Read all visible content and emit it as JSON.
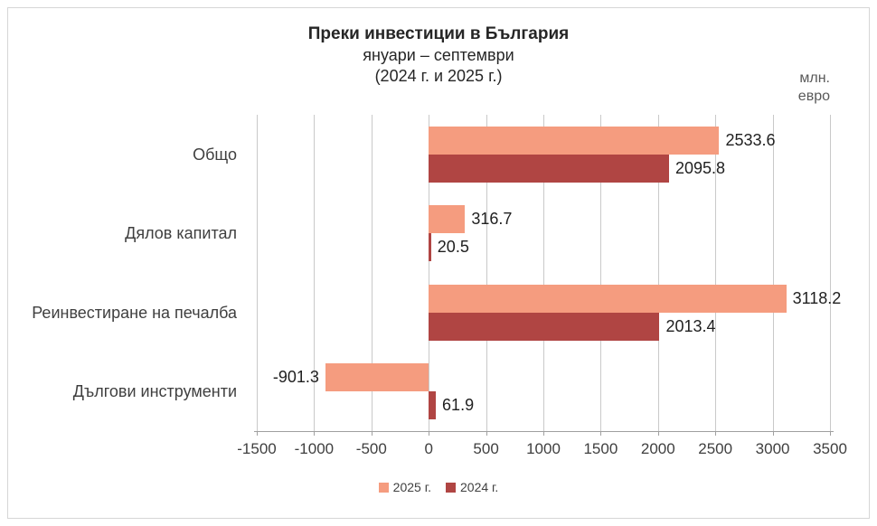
{
  "title": {
    "line1": "Преки инвестиции в България",
    "line2": "януари – септември",
    "line3": "(2024 г. и 2025 г.)"
  },
  "unit": {
    "line1": "млн.",
    "line2": "евро"
  },
  "chart_data": {
    "type": "bar",
    "orientation": "horizontal",
    "title": "Преки инвестиции в България януари – септември (2024 г. и 2025 г.)",
    "unit": "млн. евро",
    "categories": [
      "Общо",
      "Дялов капитал",
      "Реинвестиране на печалба",
      "Дългови инструменти"
    ],
    "series": [
      {
        "name": "2025 г.",
        "color": "#F59C7F",
        "values": [
          2533.6,
          316.7,
          3118.2,
          -901.3
        ]
      },
      {
        "name": "2024 г.",
        "color": "#B04543",
        "values": [
          2095.8,
          20.5,
          2013.4,
          61.9
        ]
      }
    ],
    "x_ticks": [
      -1500,
      -1000,
      -500,
      0,
      500,
      1000,
      1500,
      2000,
      2500,
      3000,
      3500
    ],
    "xlim": [
      -1500,
      3500
    ],
    "grid": "vertical-only",
    "value_labels": true,
    "legend_position": "bottom",
    "colors": {
      "gridline": "#c9c9c9",
      "axis": "#a0a0a0",
      "text": "#262626",
      "frame_border": "#d6d6d6"
    }
  }
}
